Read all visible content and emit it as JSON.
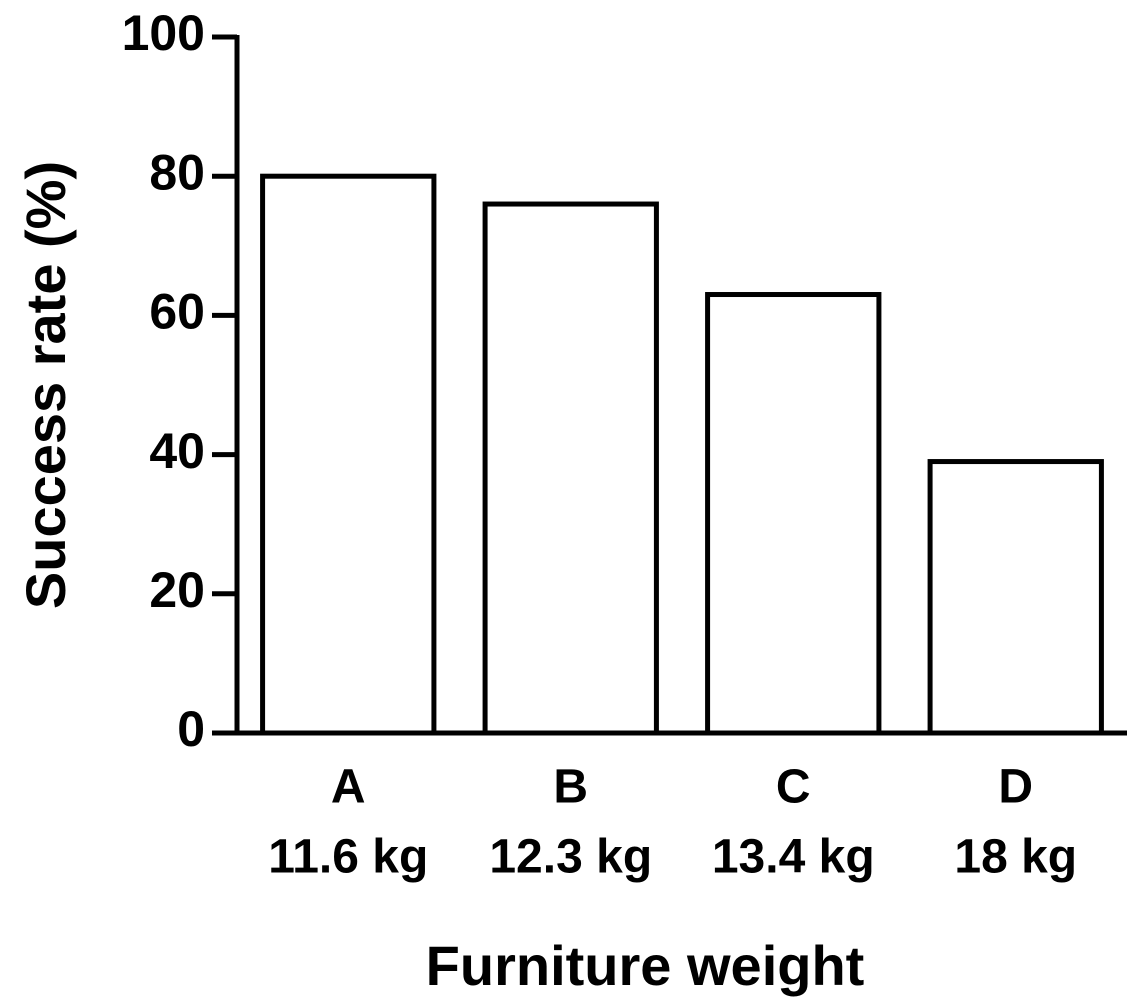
{
  "chart_data": {
    "type": "bar",
    "y_label": "Success rate (%)",
    "x_label": "Furniture weight",
    "categories": [
      "A",
      "B",
      "C",
      "D"
    ],
    "category_sublabels": [
      "11.6 kg",
      "12.3 kg",
      "13.4 kg",
      "18 kg"
    ],
    "values": [
      80,
      76,
      63,
      39
    ],
    "color": "#ffffff",
    "edge_color": "#000000",
    "ylim": [
      0,
      100
    ],
    "yticks": [
      0,
      20,
      40,
      60,
      80,
      100
    ],
    "grid": false
  }
}
